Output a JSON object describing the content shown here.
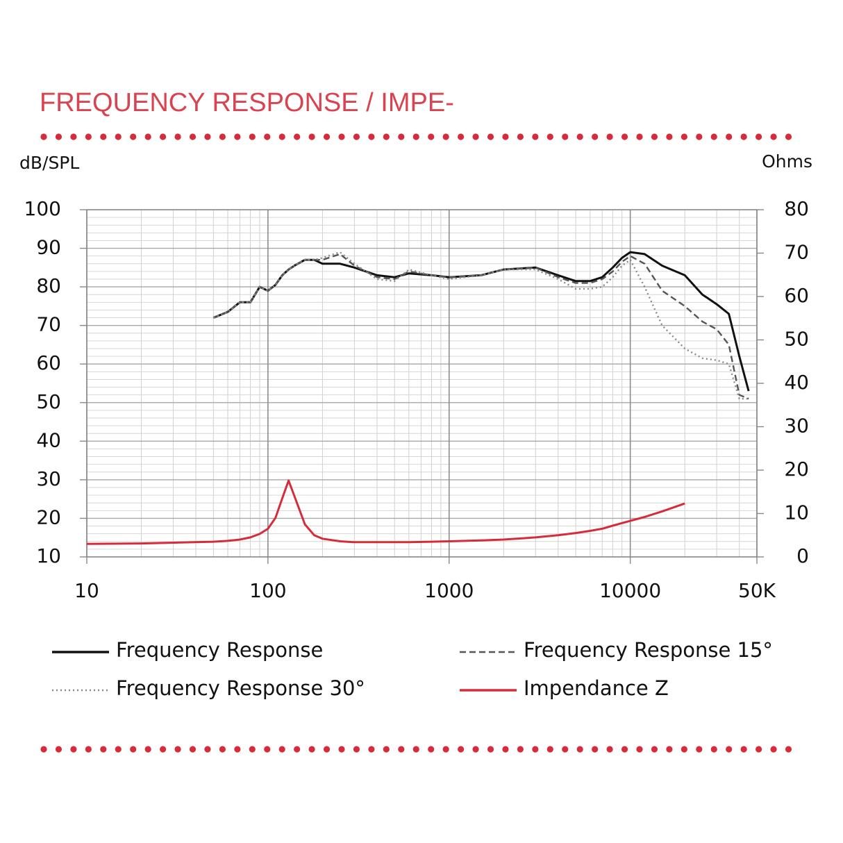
{
  "chart_data": {
    "type": "line",
    "title": "FREQUENCY RESPONSE / IMPE-",
    "y_label": "dB/SPL",
    "y2_label": "Ohms",
    "log_x": true,
    "grid": true,
    "x": [
      10,
      20,
      50,
      60,
      70,
      80,
      90,
      100,
      110,
      120,
      130,
      140,
      160,
      180,
      200,
      250,
      300,
      400,
      500,
      600,
      800,
      1000,
      1500,
      2000,
      3000,
      4000,
      5000,
      6000,
      7000,
      8000,
      9000,
      10000,
      12000,
      15000,
      20000,
      25000,
      30000,
      35000,
      40000,
      45000
    ],
    "xlim": [
      10,
      50000
    ],
    "xticks": [
      10,
      100,
      1000,
      10000,
      {
        "value": 50000,
        "label": "50K"
      }
    ],
    "ylim": [
      10,
      100
    ],
    "yticks": [
      10,
      20,
      30,
      40,
      50,
      60,
      70,
      80,
      90,
      100
    ],
    "y2lim": [
      0,
      80
    ],
    "y2ticks": [
      0,
      10,
      20,
      30,
      40,
      50,
      60,
      70,
      80
    ],
    "series": [
      {
        "name": "Frequency Response",
        "color": "#111111",
        "dash": "solid",
        "values": [
          null,
          null,
          72,
          73.5,
          76,
          76,
          80,
          79,
          80.5,
          83,
          84.5,
          85.5,
          87,
          87,
          86,
          86,
          85,
          83,
          82.5,
          83.5,
          83,
          82.5,
          83,
          84.5,
          85,
          83,
          81.5,
          81.5,
          82.5,
          85,
          87.5,
          89,
          88.5,
          85.5,
          83,
          78,
          75.5,
          73,
          62,
          53
        ]
      },
      {
        "name": "Frequency Response 15°",
        "color": "#555555",
        "dash": "dashed",
        "values": [
          null,
          null,
          72,
          73.5,
          76,
          76,
          80,
          79,
          80.5,
          83,
          84.5,
          85.5,
          87,
          87,
          87,
          88.5,
          85.5,
          82.5,
          82,
          84,
          83,
          82.5,
          83,
          84.5,
          85,
          82.5,
          81,
          81,
          82,
          84,
          86.5,
          88,
          86,
          79,
          75,
          71,
          69,
          65,
          52,
          51
        ]
      },
      {
        "name": "Frequency Response 30°",
        "color": "#888888",
        "dash": "dotted",
        "values": [
          null,
          null,
          72,
          73.5,
          76,
          76,
          80,
          79,
          80.5,
          83,
          84.5,
          85.5,
          87,
          87,
          87.5,
          89,
          86,
          82,
          81.5,
          84.5,
          83,
          82,
          83,
          84.5,
          84.5,
          82,
          79.5,
          79.5,
          80,
          82.5,
          85.5,
          87,
          80,
          70,
          64,
          61.5,
          61,
          60,
          51,
          51
        ]
      },
      {
        "name": "Impendance Z",
        "color": "#d62b3a",
        "dash": "solid",
        "axis": "y2",
        "values": [
          3,
          3.1,
          3.5,
          3.7,
          4,
          4.5,
          5.3,
          6.5,
          9,
          13.5,
          17.6,
          14,
          7.5,
          5,
          4.2,
          3.6,
          3.4,
          3.4,
          3.4,
          3.4,
          3.5,
          3.6,
          3.8,
          4,
          4.5,
          5,
          5.5,
          6,
          6.5,
          7.2,
          7.8,
          8.3,
          9.2,
          10.5,
          12.3,
          null,
          null,
          null,
          null,
          null
        ]
      }
    ]
  }
}
